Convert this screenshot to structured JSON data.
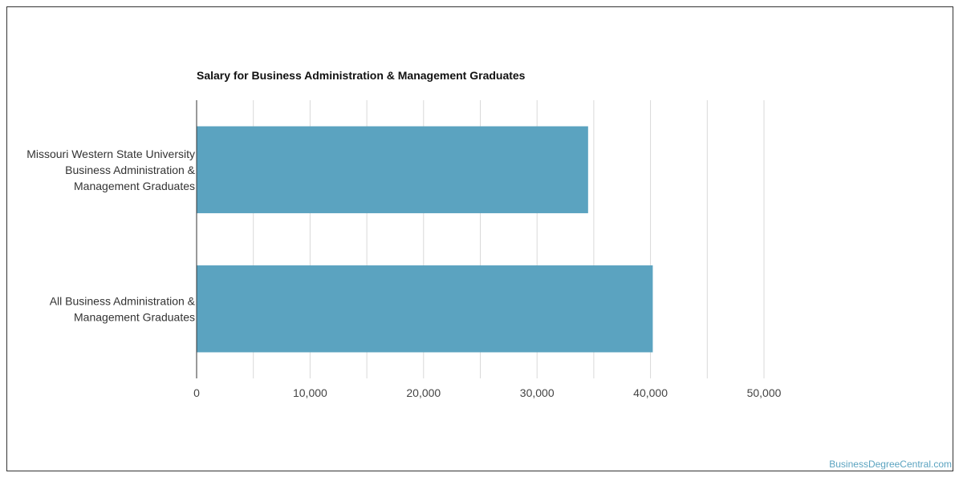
{
  "chart_data": {
    "type": "bar",
    "orientation": "horizontal",
    "title": "Salary for Business Administration & Management Graduates",
    "categories": [
      [
        "Missouri Western State University",
        "Business Administration &",
        "Management Graduates"
      ],
      [
        "All Business Administration &",
        "Management Graduates"
      ]
    ],
    "values": [
      34500,
      40200
    ],
    "xlim": [
      0,
      50000
    ],
    "xticks": [
      0,
      10000,
      20000,
      30000,
      40000,
      50000
    ],
    "xtick_labels": [
      "0",
      "10,000",
      "20,000",
      "30,000",
      "40,000",
      "50,000"
    ],
    "grid": true,
    "legend": "none",
    "colors": {
      "bar": "#5ba3c0",
      "grid": "#d9d9d9",
      "axis": "#333333"
    }
  },
  "watermark": "BusinessDegreeCentral.com"
}
